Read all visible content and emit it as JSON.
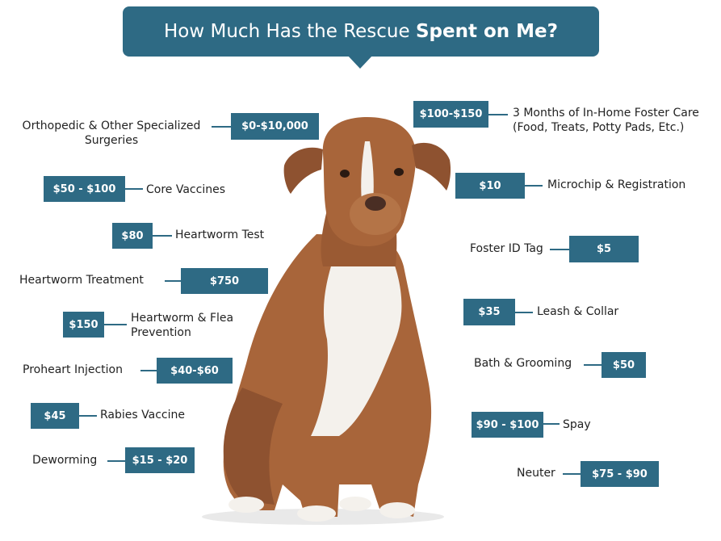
{
  "title": {
    "prefix": "How Much Has the Rescue ",
    "bold": "Spent on Me?"
  },
  "items": {
    "ortho": {
      "price": "$0-$10,000",
      "label1": "Orthopedic & Other Specialized",
      "label2": "Surgeries"
    },
    "core_vacc": {
      "price": "$50 - $100",
      "label": "Core Vaccines"
    },
    "hw_test": {
      "price": "$80",
      "label": "Heartworm Test"
    },
    "hw_treat": {
      "price": "$750",
      "label": "Heartworm Treatment"
    },
    "hw_flea": {
      "price": "$150",
      "label1": "Heartworm & Flea",
      "label2": "Prevention"
    },
    "proheart": {
      "price": "$40-$60",
      "label": "Proheart Injection"
    },
    "rabies": {
      "price": "$45",
      "label": "Rabies Vaccine"
    },
    "deworming": {
      "price": "$15 - $20",
      "label": "Deworming"
    },
    "foster_care": {
      "price": "$100-$150",
      "label1": "3 Months of In-Home Foster Care",
      "label2": "(Food, Treats, Potty Pads, Etc.)"
    },
    "microchip": {
      "price": "$10",
      "label": "Microchip & Registration"
    },
    "foster_tag": {
      "price": "$5",
      "label": "Foster ID Tag"
    },
    "leash": {
      "price": "$35",
      "label": "Leash & Collar"
    },
    "bath": {
      "price": "$50",
      "label": "Bath & Grooming"
    },
    "spay": {
      "price": "$90 - $100",
      "label": "Spay"
    },
    "neuter": {
      "price": "$75 - $90",
      "label": "Neuter"
    }
  },
  "colors": {
    "accent": "#2e6a84",
    "dog_coat": "#a8653a",
    "dog_chest": "#f4f1ec"
  }
}
